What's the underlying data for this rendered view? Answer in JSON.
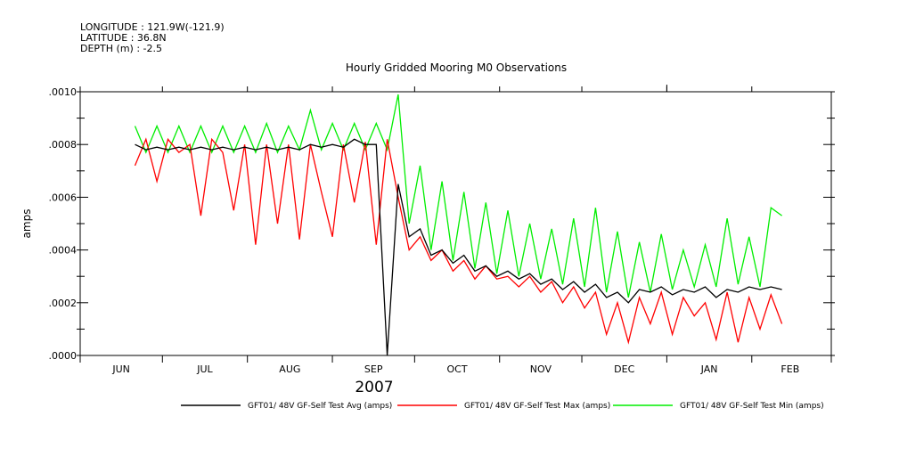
{
  "header": {
    "longitude": "LONGITUDE : 121.9W(-121.9)",
    "latitude": "LATITUDE : 36.8N",
    "depth": "DEPTH (m) : -2.5"
  },
  "chart_data": {
    "type": "line",
    "title": "Hourly Gridded Mooring M0 Observations",
    "ylabel": "amps",
    "xlabel": "2007",
    "ylim": [
      0,
      0.001
    ],
    "yticks": [
      ".0000",
      ".0002",
      ".0004",
      ".0006",
      ".0008",
      ".0010"
    ],
    "xlim_days_since_jun1": [
      0,
      274
    ],
    "months": [
      "JUN",
      "JUL",
      "AUG",
      "SEP",
      "OCT",
      "NOV",
      "DEC",
      "JAN",
      "FEB"
    ],
    "month_lengths": [
      30,
      31,
      31,
      30,
      31,
      30,
      31,
      31,
      28
    ],
    "x_days_since_jun1": [
      20,
      24,
      28,
      32,
      36,
      40,
      44,
      48,
      52,
      56,
      60,
      64,
      68,
      72,
      76,
      80,
      84,
      88,
      92,
      96,
      100,
      104,
      108,
      112,
      116,
      120,
      124,
      128,
      132,
      136,
      140,
      144,
      148,
      152,
      156,
      160,
      164,
      168,
      172,
      176,
      180,
      184,
      188,
      192,
      196,
      200,
      204,
      208,
      212,
      216,
      220,
      224,
      228,
      232,
      236,
      240,
      244,
      248,
      252,
      256
    ],
    "series": [
      {
        "name": "GFT01/ 48V GF-Self Test Min (amps)",
        "color": "#00ee00",
        "values": [
          0.00087,
          0.00077,
          0.00087,
          0.00077,
          0.00087,
          0.00077,
          0.00087,
          0.00077,
          0.00087,
          0.00077,
          0.00087,
          0.00077,
          0.00088,
          0.00077,
          0.00087,
          0.00078,
          0.00093,
          0.00078,
          0.00088,
          0.00078,
          0.00088,
          0.00078,
          0.00088,
          0.00078,
          0.00099,
          0.0005,
          0.00072,
          0.0004,
          0.00066,
          0.00036,
          0.00062,
          0.00033,
          0.00058,
          0.00031,
          0.00055,
          0.0003,
          0.0005,
          0.00029,
          0.00048,
          0.00027,
          0.00052,
          0.00026,
          0.00056,
          0.00024,
          0.00047,
          0.00022,
          0.00043,
          0.00024,
          0.00046,
          0.00025,
          0.0004,
          0.00026,
          0.00042,
          0.00026,
          0.00052,
          0.00027,
          0.00045,
          0.00026,
          0.00056,
          0.00053
        ]
      },
      {
        "name": "GFT01/ 48V GF-Self Test Max (amps)",
        "color": "#ff0000",
        "values": [
          0.00072,
          0.00082,
          0.00066,
          0.00082,
          0.00077,
          0.0008,
          0.00053,
          0.00082,
          0.00077,
          0.00055,
          0.0008,
          0.00042,
          0.0008,
          0.0005,
          0.0008,
          0.00044,
          0.0008,
          0.00062,
          0.00045,
          0.0008,
          0.00058,
          0.00081,
          0.00042,
          0.00082,
          0.0006,
          0.0004,
          0.00045,
          0.00036,
          0.0004,
          0.00032,
          0.00036,
          0.00029,
          0.00034,
          0.00029,
          0.0003,
          0.00026,
          0.0003,
          0.00024,
          0.00028,
          0.0002,
          0.00026,
          0.00018,
          0.00024,
          8e-05,
          0.0002,
          5e-05,
          0.00022,
          0.00012,
          0.00024,
          8e-05,
          0.00022,
          0.00015,
          0.0002,
          6e-05,
          0.00024,
          5e-05,
          0.00022,
          0.0001,
          0.00023,
          0.00012
        ]
      },
      {
        "name": "GFT01/ 48V GF-Self Test Avg (amps)",
        "color": "#000000",
        "values": [
          0.0008,
          0.00078,
          0.00079,
          0.00078,
          0.00079,
          0.00078,
          0.00079,
          0.00078,
          0.00079,
          0.00078,
          0.00079,
          0.00078,
          0.00079,
          0.00078,
          0.00079,
          0.00078,
          0.0008,
          0.00079,
          0.0008,
          0.00079,
          0.00082,
          0.0008,
          0.0008,
          0.0,
          0.00065,
          0.00045,
          0.00048,
          0.00038,
          0.0004,
          0.00035,
          0.00038,
          0.00032,
          0.00034,
          0.0003,
          0.00032,
          0.00029,
          0.00031,
          0.00027,
          0.00029,
          0.00025,
          0.00028,
          0.00024,
          0.00027,
          0.00022,
          0.00024,
          0.0002,
          0.00025,
          0.00024,
          0.00026,
          0.00023,
          0.00025,
          0.00024,
          0.00026,
          0.00022,
          0.00025,
          0.00024,
          0.00026,
          0.00025,
          0.00026,
          0.00025
        ]
      }
    ],
    "legend": [
      {
        "label": "GFT01/ 48V GF-Self Test Avg (amps)",
        "color": "#000000"
      },
      {
        "label": "GFT01/ 48V GF-Self Test Max (amps)",
        "color": "#ff0000"
      },
      {
        "label": "GFT01/ 48V GF-Self Test Min (amps)",
        "color": "#00ee00"
      }
    ],
    "legend_placement": "bottom",
    "grid": false
  }
}
